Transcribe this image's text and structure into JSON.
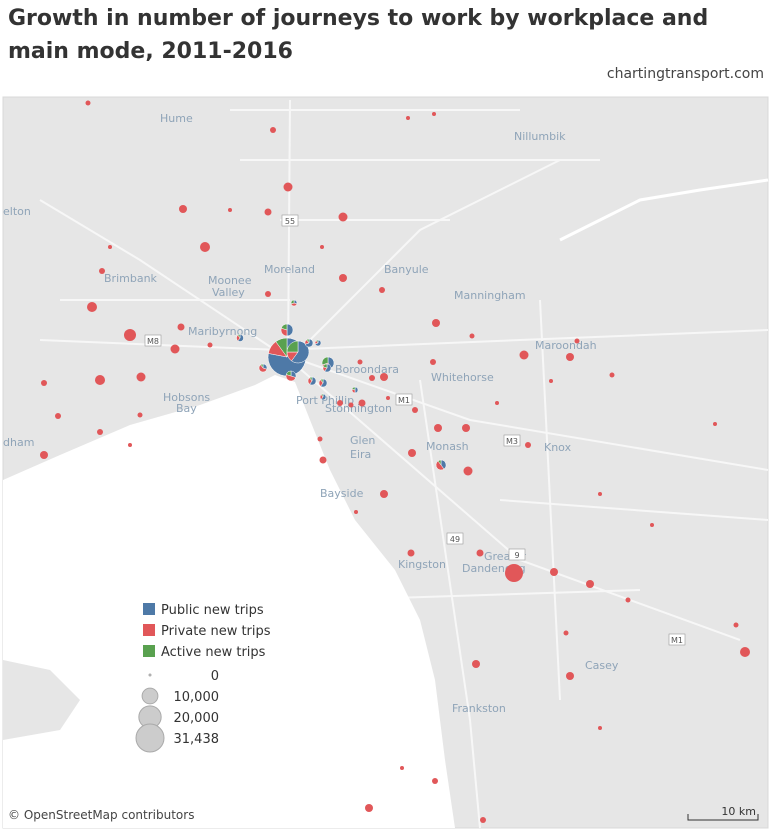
{
  "title": "Growth in number of journeys to work by workplace and main mode, 2011-2016",
  "source": "chartingtransport.com",
  "legend": {
    "color_items": [
      {
        "label": "Public new trips",
        "color": "#4e79a7"
      },
      {
        "label": "Private new trips",
        "color": "#e15759"
      },
      {
        "label": "Active new trips",
        "color": "#59a14f"
      }
    ],
    "size_items": [
      {
        "value": 0,
        "label": "0"
      },
      {
        "value": 10000,
        "label": "10,000"
      },
      {
        "value": 20000,
        "label": "20,000"
      },
      {
        "value": 31438,
        "label": "31,438"
      }
    ]
  },
  "places": [
    "Hume",
    "Nillumbik",
    "elton",
    "Brimbank",
    "Moonee",
    "Valley",
    "Moreland",
    "Banyule",
    "Manningham",
    "Maribyrnong",
    "Maroondah",
    "Boroondara",
    "Whitehorse",
    "Hobsons",
    "Bay",
    "Port Phillip",
    "Stonnington",
    "Monash",
    "Knox",
    "dham",
    "Glen",
    "Eira",
    "Bayside",
    "Kingston",
    "Greater",
    "Dandenong",
    "Casey",
    "Frankston"
  ],
  "road_shields": [
    "55",
    "M8",
    "M1",
    "M3",
    "49",
    "9",
    "M1"
  ],
  "attribution": "© OpenStreetMap contributors",
  "scale_label": "10 km"
}
